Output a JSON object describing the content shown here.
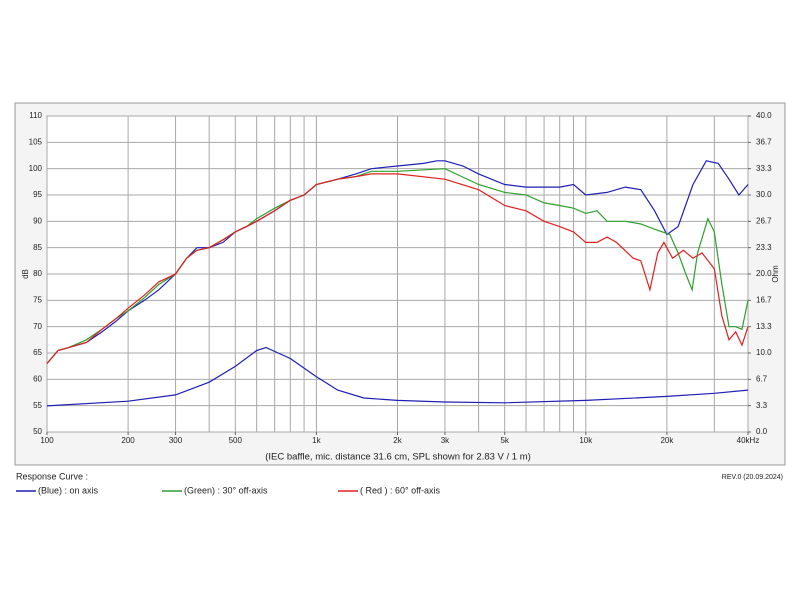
{
  "chart_data": {
    "type": "line",
    "subtitle": "(IEC baffle, mic. distance 31.6 cm, SPL shown for 2.83 V / 1 m)",
    "ylabel": "dB",
    "y2label": "Ohm",
    "revision": "REV.0 (20.09.2024)",
    "legend_title": "Response Curve :",
    "xscale": "log",
    "xlim": [
      100,
      40000
    ],
    "xticks": [
      100,
      200,
      300,
      500,
      {
        "value": 1000,
        "label": "1k"
      },
      {
        "value": 2000,
        "label": "2k"
      },
      {
        "value": 3000,
        "label": "3k"
      },
      {
        "value": 5000,
        "label": "5k"
      },
      {
        "value": 10000,
        "label": "10k"
      },
      {
        "value": 20000,
        "label": "20k"
      },
      {
        "value": 40000,
        "label": "40kHz"
      }
    ],
    "xgrid": [
      100,
      200,
      300,
      400,
      500,
      600,
      700,
      800,
      900,
      1000,
      2000,
      3000,
      4000,
      5000,
      6000,
      7000,
      8000,
      9000,
      10000,
      20000,
      30000,
      40000
    ],
    "ylim": [
      50,
      110
    ],
    "yticks": [
      50,
      55,
      60,
      65,
      70,
      75,
      80,
      85,
      90,
      95,
      100,
      105,
      110
    ],
    "y2lim": [
      0,
      40
    ],
    "y2ticks": [
      {
        "value": 0,
        "label": "0.0"
      },
      {
        "value": 3.333,
        "label": "3.3"
      },
      {
        "value": 6.667,
        "label": "6.7"
      },
      {
        "value": 10,
        "label": "10.0"
      },
      {
        "value": 13.333,
        "label": "13.3"
      },
      {
        "value": 16.667,
        "label": "16.7"
      },
      {
        "value": 20,
        "label": "20.0"
      },
      {
        "value": 23.333,
        "label": "23.3"
      },
      {
        "value": 26.667,
        "label": "26.7"
      },
      {
        "value": 30,
        "label": "30.0"
      },
      {
        "value": 33.333,
        "label": "33.3"
      },
      {
        "value": 36.667,
        "label": "36.7"
      },
      {
        "value": 40,
        "label": "40.0"
      }
    ],
    "grid": true,
    "series": [
      {
        "name": "(Blue)  : on axis",
        "color": "#1f1fb4",
        "x": [
          100,
          110,
          120,
          140,
          160,
          180,
          200,
          230,
          260,
          300,
          330,
          360,
          400,
          450,
          500,
          550,
          600,
          700,
          800,
          900,
          1000,
          1200,
          1400,
          1600,
          2000,
          2500,
          2800,
          3000,
          3500,
          4000,
          5000,
          6000,
          7000,
          8000,
          9000,
          10000,
          12000,
          14000,
          16000,
          18000,
          20000,
          22000,
          25000,
          28000,
          31000,
          34000,
          37000,
          40000
        ],
        "values": [
          63,
          65.5,
          66,
          67,
          69,
          71,
          73,
          75,
          77,
          80,
          83,
          85,
          85,
          86,
          88,
          89,
          90,
          92,
          94,
          95,
          97,
          98,
          99,
          100,
          100.5,
          101,
          101.5,
          101.5,
          100.5,
          99,
          97,
          96.5,
          96.5,
          96.5,
          97,
          95,
          95.5,
          96.5,
          96,
          92,
          87.5,
          89,
          97,
          101.5,
          101,
          98,
          95,
          97
        ]
      },
      {
        "name": "(Green) : 30° off-axis",
        "color": "#2ea02e",
        "x": [
          100,
          110,
          120,
          140,
          160,
          180,
          200,
          230,
          260,
          300,
          330,
          360,
          400,
          450,
          500,
          550,
          600,
          700,
          800,
          900,
          1000,
          1200,
          1400,
          1600,
          2000,
          3000,
          4000,
          5000,
          6000,
          7000,
          8000,
          9000,
          10000,
          11000,
          12000,
          14000,
          16000,
          18000,
          20500,
          22000,
          23500,
          24800,
          26000,
          28400,
          30000,
          32000,
          34000,
          36000,
          38000,
          40000
        ],
        "values": [
          63,
          65.5,
          66,
          67.5,
          69.5,
          71.5,
          73,
          75.5,
          78,
          80,
          83,
          84.5,
          85,
          86.5,
          88,
          89,
          90.5,
          92.5,
          94,
          95,
          97,
          98,
          98.5,
          99.5,
          99.5,
          100,
          97,
          95.5,
          95,
          93.5,
          93,
          92.5,
          91.5,
          92,
          90,
          90,
          89.5,
          88.5,
          87.5,
          84,
          80,
          77,
          84,
          90.5,
          88,
          78,
          70,
          70,
          69.5,
          75
        ]
      },
      {
        "name": "( Red ) : 60° off-axis",
        "color": "#e02020",
        "x": [
          100,
          110,
          120,
          140,
          160,
          180,
          200,
          230,
          260,
          300,
          330,
          360,
          400,
          450,
          500,
          550,
          600,
          700,
          800,
          900,
          1000,
          1200,
          1400,
          1600,
          2000,
          3000,
          4000,
          5000,
          6000,
          7000,
          8000,
          9000,
          10000,
          11000,
          12000,
          13000,
          15000,
          16000,
          17300,
          18500,
          19500,
          21000,
          23000,
          25000,
          27000,
          30000,
          32000,
          34000,
          36000,
          38000,
          40000
        ],
        "values": [
          63,
          65.5,
          66,
          67,
          69.5,
          71.5,
          73.5,
          76,
          78.5,
          80,
          83,
          84.5,
          85,
          86.5,
          88,
          89,
          90,
          92,
          94,
          95,
          97,
          98,
          98.5,
          99,
          99,
          98,
          96,
          93,
          92,
          90,
          89,
          88,
          86,
          86,
          87,
          86,
          83,
          82.5,
          77,
          84,
          86,
          83,
          84.5,
          83,
          84,
          81,
          72,
          67.5,
          69,
          66.5,
          70
        ]
      },
      {
        "color": "#1f1fb4",
        "axis": "y2",
        "x": [
          100,
          200,
          300,
          400,
          500,
          600,
          650,
          800,
          1000,
          1200,
          1500,
          2000,
          3000,
          5000,
          10000,
          20000,
          30000,
          40000
        ],
        "values": [
          3.3,
          3.9,
          4.7,
          6.3,
          8.3,
          10.3,
          10.7,
          9.3,
          7.0,
          5.3,
          4.3,
          4.0,
          3.8,
          3.7,
          4.0,
          4.5,
          4.9,
          5.3
        ]
      }
    ]
  }
}
